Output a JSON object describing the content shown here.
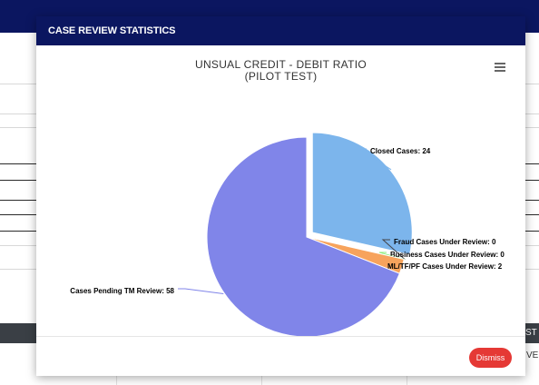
{
  "modal": {
    "title": "CASE REVIEW STATISTICS",
    "dismiss_label": "Dismiss"
  },
  "chart_menu": {
    "icon": "hamburger-menu-icon"
  },
  "background": {
    "right_header_fragment": "ST",
    "right_row_fragment": "VE"
  },
  "colors": {
    "header": "#0b1660",
    "closed": "#7cb5ec",
    "fraud": "#434348",
    "business": "#90ed7d",
    "ml": "#f7a35c",
    "pending": "#8085e9",
    "dismiss": "#e53935"
  },
  "chart_data": {
    "type": "pie",
    "title": "UNSUAL CREDIT - DEBIT RATIO",
    "subtitle": "(PILOT TEST)",
    "slices": [
      {
        "name": "Closed Cases",
        "value": 24,
        "label": "Closed Cases: 24",
        "color": "#7cb5ec",
        "sliced": true
      },
      {
        "name": "Fraud Cases Under Review",
        "value": 0,
        "label": "Fraud Cases Under Review: 0",
        "color": "#434348"
      },
      {
        "name": "Business Cases Under Review",
        "value": 0,
        "label": "Business Cases Under Review: 0",
        "color": "#90ed7d"
      },
      {
        "name": "ML/TF/PF Cases Under Review",
        "value": 2,
        "label": "ML/TF/PF Cases Under Review: 2",
        "color": "#f7a35c"
      },
      {
        "name": "Cases Pending TM Review",
        "value": 58,
        "label": "Cases Pending TM Review: 58",
        "color": "#8085e9"
      }
    ]
  }
}
